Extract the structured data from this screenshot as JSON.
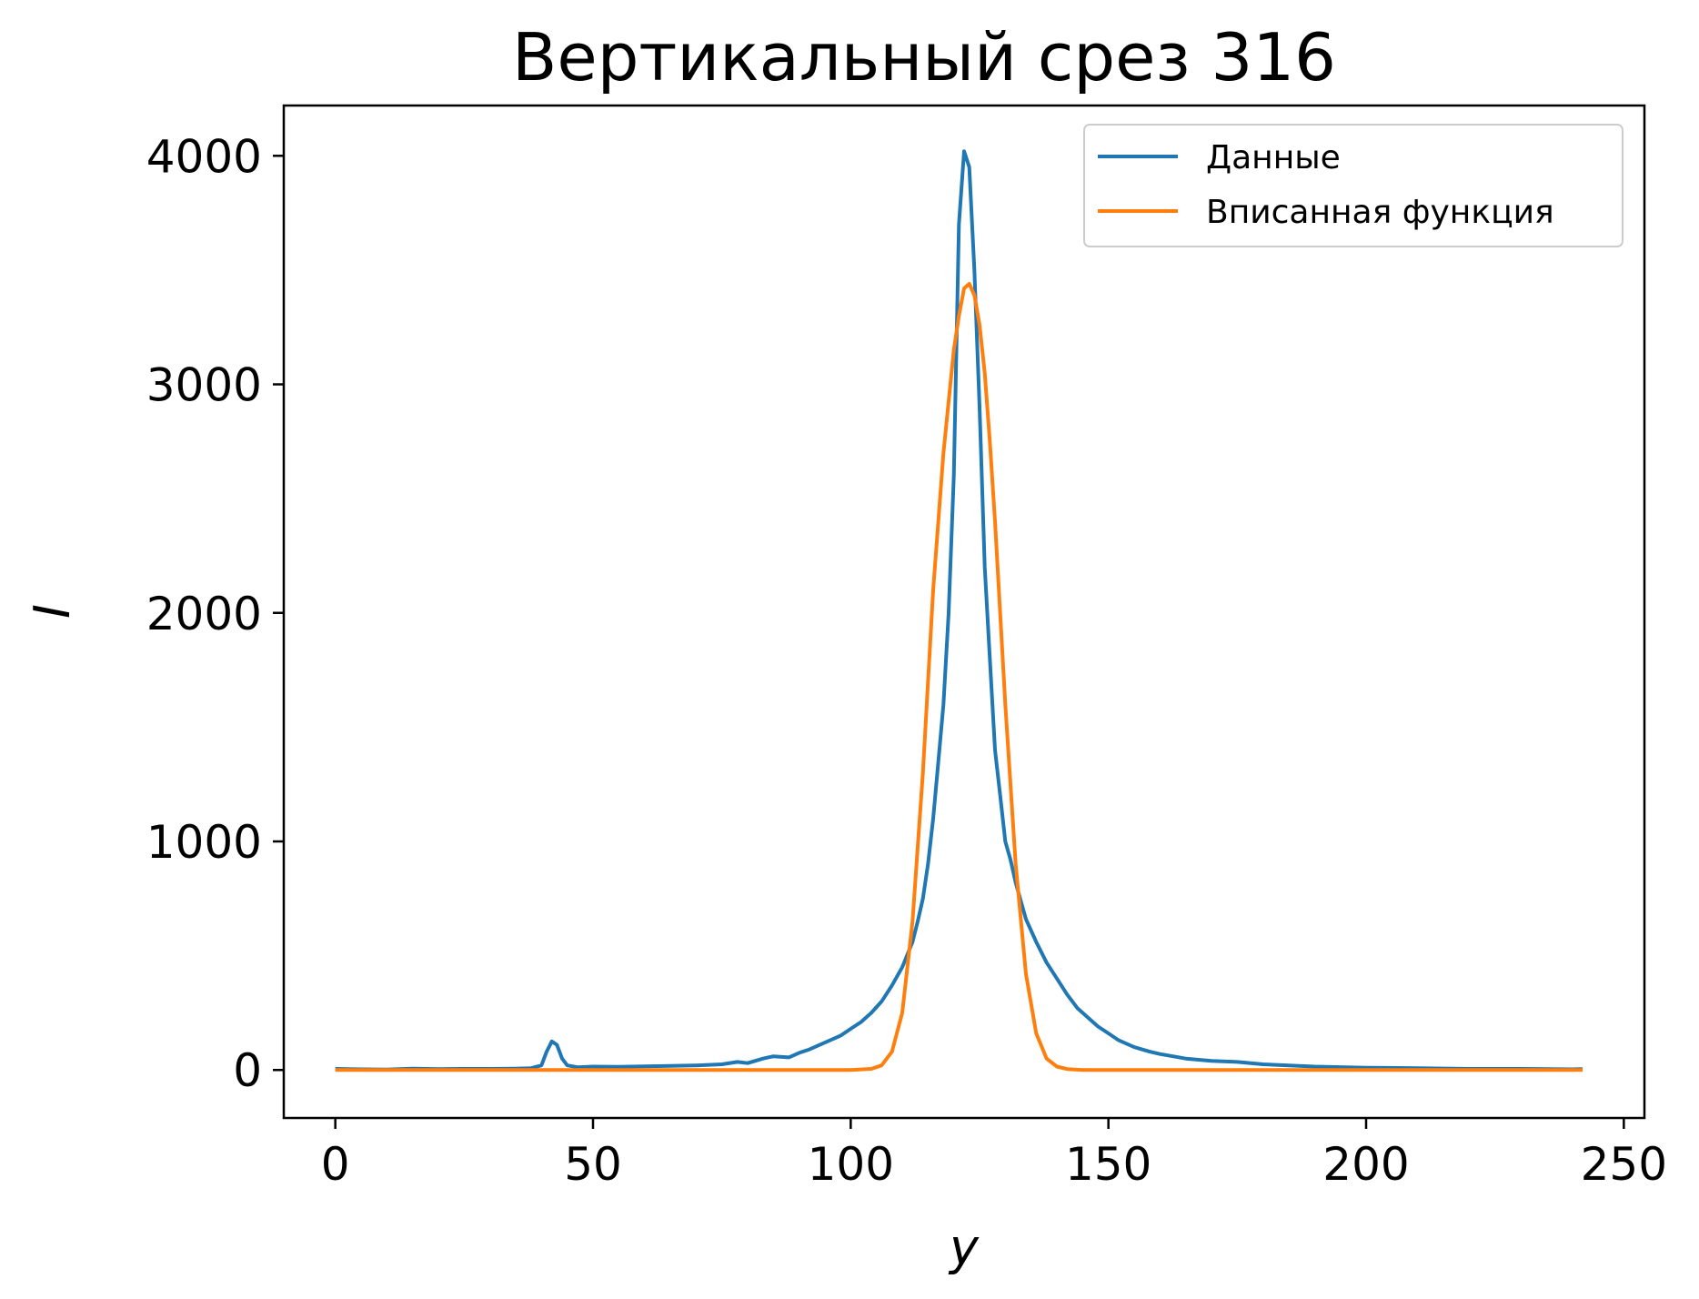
{
  "chart_data": {
    "type": "line",
    "title": "Вертикальный срез 316",
    "xlabel": "y",
    "ylabel": "I",
    "xlim": [
      -10,
      254
    ],
    "ylim": [
      -210,
      4220
    ],
    "x_ticks": [
      0,
      50,
      100,
      150,
      200,
      250
    ],
    "y_ticks": [
      0,
      1000,
      2000,
      3000,
      4000
    ],
    "grid": false,
    "legend_position": "top-right",
    "series": [
      {
        "name": "Данные",
        "color": "#1f77b4",
        "points": [
          [
            0,
            5
          ],
          [
            5,
            3
          ],
          [
            10,
            2
          ],
          [
            15,
            6
          ],
          [
            20,
            4
          ],
          [
            25,
            5
          ],
          [
            30,
            5
          ],
          [
            35,
            6
          ],
          [
            38,
            8
          ],
          [
            40,
            20
          ],
          [
            41,
            80
          ],
          [
            42,
            125
          ],
          [
            43,
            110
          ],
          [
            44,
            50
          ],
          [
            45,
            20
          ],
          [
            47,
            12
          ],
          [
            50,
            15
          ],
          [
            55,
            14
          ],
          [
            60,
            16
          ],
          [
            65,
            18
          ],
          [
            70,
            20
          ],
          [
            75,
            25
          ],
          [
            78,
            35
          ],
          [
            80,
            30
          ],
          [
            83,
            50
          ],
          [
            85,
            60
          ],
          [
            88,
            55
          ],
          [
            90,
            75
          ],
          [
            92,
            90
          ],
          [
            94,
            110
          ],
          [
            96,
            130
          ],
          [
            98,
            150
          ],
          [
            100,
            180
          ],
          [
            102,
            210
          ],
          [
            104,
            250
          ],
          [
            106,
            300
          ],
          [
            108,
            370
          ],
          [
            110,
            450
          ],
          [
            112,
            560
          ],
          [
            113,
            650
          ],
          [
            114,
            750
          ],
          [
            115,
            900
          ],
          [
            116,
            1100
          ],
          [
            117,
            1350
          ],
          [
            118,
            1600
          ],
          [
            119,
            2000
          ],
          [
            120,
            2600
          ],
          [
            121,
            3700
          ],
          [
            122,
            4020
          ],
          [
            123,
            3950
          ],
          [
            124,
            3500
          ],
          [
            125,
            2900
          ],
          [
            126,
            2200
          ],
          [
            127,
            1800
          ],
          [
            128,
            1400
          ],
          [
            129,
            1200
          ],
          [
            130,
            1000
          ],
          [
            131,
            920
          ],
          [
            132,
            820
          ],
          [
            133,
            740
          ],
          [
            134,
            660
          ],
          [
            136,
            560
          ],
          [
            138,
            470
          ],
          [
            140,
            400
          ],
          [
            142,
            330
          ],
          [
            144,
            270
          ],
          [
            146,
            230
          ],
          [
            148,
            190
          ],
          [
            150,
            160
          ],
          [
            152,
            130
          ],
          [
            155,
            100
          ],
          [
            158,
            80
          ],
          [
            160,
            70
          ],
          [
            165,
            50
          ],
          [
            170,
            40
          ],
          [
            175,
            35
          ],
          [
            180,
            25
          ],
          [
            185,
            20
          ],
          [
            190,
            15
          ],
          [
            200,
            10
          ],
          [
            210,
            8
          ],
          [
            220,
            5
          ],
          [
            225,
            5
          ],
          [
            230,
            5
          ],
          [
            235,
            4
          ],
          [
            240,
            3
          ],
          [
            242,
            4
          ]
        ]
      },
      {
        "name": "Вписанная функция",
        "color": "#ff7f0e",
        "points": [
          [
            0,
            0
          ],
          [
            100,
            0
          ],
          [
            104,
            5
          ],
          [
            106,
            20
          ],
          [
            108,
            80
          ],
          [
            110,
            250
          ],
          [
            112,
            650
          ],
          [
            114,
            1300
          ],
          [
            116,
            2100
          ],
          [
            118,
            2700
          ],
          [
            120,
            3150
          ],
          [
            121,
            3300
          ],
          [
            122,
            3420
          ],
          [
            123,
            3440
          ],
          [
            124,
            3390
          ],
          [
            125,
            3260
          ],
          [
            126,
            3050
          ],
          [
            127,
            2750
          ],
          [
            128,
            2400
          ],
          [
            130,
            1600
          ],
          [
            132,
            900
          ],
          [
            134,
            420
          ],
          [
            136,
            160
          ],
          [
            138,
            50
          ],
          [
            140,
            15
          ],
          [
            142,
            4
          ],
          [
            145,
            0
          ],
          [
            242,
            0
          ]
        ]
      }
    ]
  }
}
